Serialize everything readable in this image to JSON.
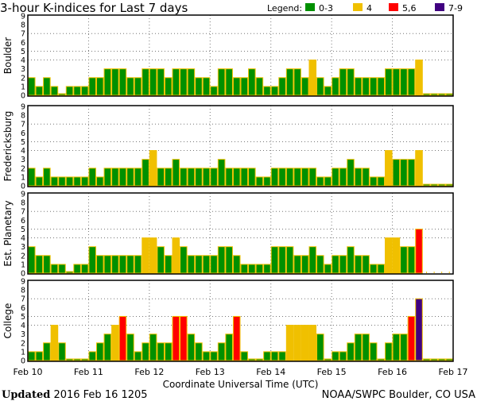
{
  "chart_data": {
    "type": "bar",
    "title": "3-hour K-indices for Last 7 days",
    "xlabel": "Coordinate Universal Time (UTC)",
    "x_ticks": [
      "Feb 10",
      "Feb 11",
      "Feb 12",
      "Feb 13",
      "Feb 14",
      "Feb 15",
      "Feb 16",
      "Feb 17"
    ],
    "y_ticks": [
      "0",
      "1",
      "2",
      "3",
      "4",
      "5",
      "6",
      "7",
      "8",
      "9"
    ],
    "ylim": [
      0,
      9
    ],
    "grid_levels": [
      4,
      5,
      7
    ],
    "legend": {
      "label": "Legend:",
      "placement": "top-right",
      "entries": [
        {
          "label": "0-3",
          "color": "#009000"
        },
        {
          "label": "4",
          "color": "#f0c000"
        },
        {
          "label": "5,6",
          "color": "#ff0000"
        },
        {
          "label": "7-9",
          "color": "#400080"
        }
      ]
    },
    "outline_color": "#f0c000",
    "panels": [
      {
        "name": "Boulder",
        "values": [
          2,
          1,
          2,
          1,
          0,
          1,
          1,
          1,
          2,
          2,
          3,
          3,
          3,
          2,
          2,
          3,
          3,
          3,
          2,
          3,
          3,
          3,
          2,
          2,
          1,
          3,
          3,
          2,
          2,
          3,
          2,
          1,
          1,
          2,
          3,
          3,
          2,
          4,
          2,
          1,
          2,
          3,
          3,
          2,
          2,
          2,
          2,
          3,
          3,
          3,
          3,
          4,
          0,
          0,
          0,
          0
        ]
      },
      {
        "name": "Fredericksburg",
        "values": [
          2,
          1,
          2,
          1,
          1,
          1,
          1,
          1,
          2,
          1,
          2,
          2,
          2,
          2,
          2,
          3,
          4,
          2,
          2,
          3,
          2,
          2,
          2,
          2,
          2,
          3,
          2,
          2,
          2,
          2,
          1,
          1,
          2,
          2,
          2,
          2,
          2,
          2,
          1,
          1,
          2,
          2,
          3,
          2,
          2,
          1,
          1,
          4,
          3,
          3,
          3,
          4,
          0,
          0,
          0,
          0
        ]
      },
      {
        "name": "Est. Planetary",
        "values": [
          3,
          2,
          2,
          1,
          1,
          0,
          1,
          1,
          3,
          2,
          2,
          2,
          2,
          2,
          2,
          4,
          4,
          3,
          2,
          4,
          3,
          2,
          2,
          2,
          2,
          3,
          3,
          2,
          1,
          1,
          1,
          1,
          3,
          3,
          3,
          2,
          2,
          3,
          2,
          1,
          2,
          2,
          3,
          2,
          2,
          1,
          1,
          4,
          4,
          3,
          3,
          5,
          null,
          null,
          null,
          null
        ]
      },
      {
        "name": "College",
        "values": [
          1,
          1,
          2,
          4,
          2,
          0,
          0,
          0,
          1,
          2,
          3,
          4,
          5,
          3,
          1,
          2,
          3,
          2,
          2,
          5,
          5,
          3,
          2,
          1,
          1,
          2,
          3,
          5,
          1,
          0,
          0,
          1,
          1,
          1,
          4,
          4,
          4,
          4,
          3,
          0,
          1,
          1,
          2,
          3,
          3,
          2,
          0,
          2,
          3,
          3,
          5,
          7,
          0,
          0,
          0,
          0
        ]
      }
    ]
  },
  "footer": {
    "updated_label": "Updated",
    "updated_value": "2016 Feb 16 1205",
    "source": "NOAA/SWPC Boulder, CO USA"
  }
}
